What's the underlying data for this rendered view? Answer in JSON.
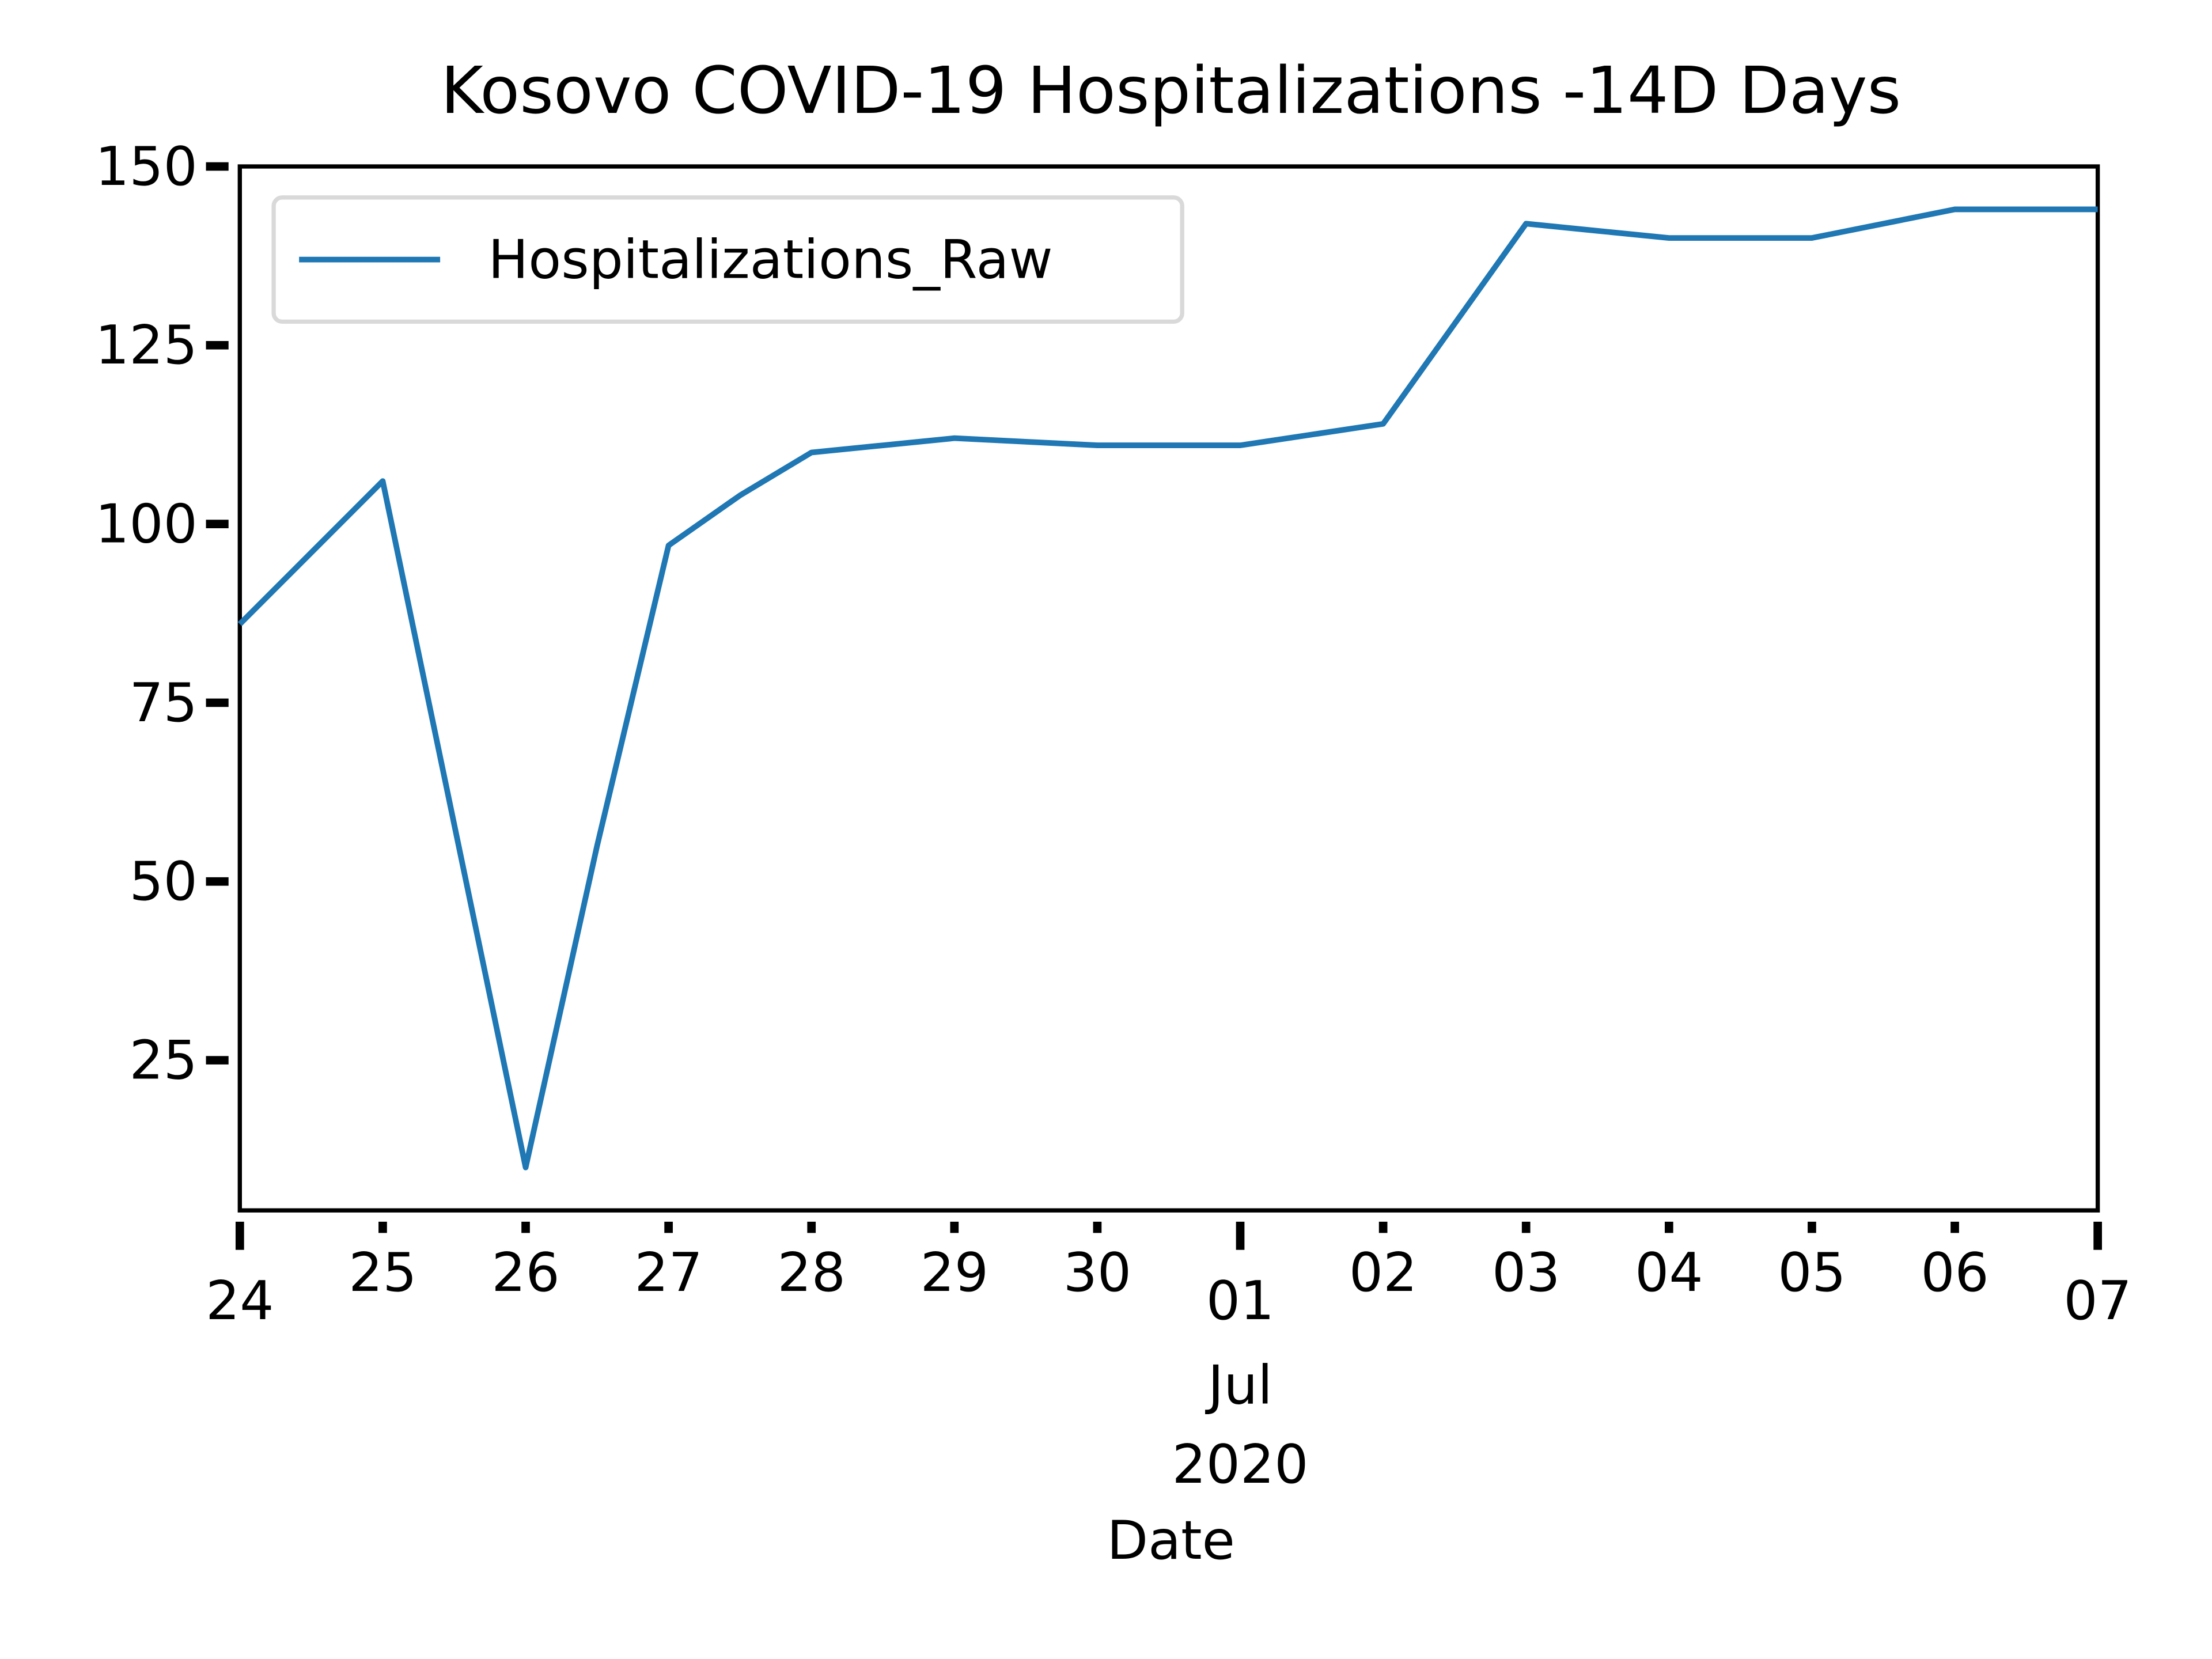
{
  "chart_data": {
    "type": "line",
    "title": "Kosovo COVID-19 Hospitalizations -14D Days",
    "x_label": "Date",
    "x": [
      "2020-06-24T00:00",
      "2020-06-24T12:00",
      "2020-06-25T00:00",
      "2020-06-25T12:00",
      "2020-06-26T00:00",
      "2020-06-26T12:00",
      "2020-06-27T00:00",
      "2020-06-27T12:00",
      "2020-06-28T00:00",
      "2020-06-28T12:00",
      "2020-06-29T00:00",
      "2020-06-29T12:00",
      "2020-06-30T00:00",
      "2020-06-30T12:00",
      "2020-07-01T00:00",
      "2020-07-01T12:00",
      "2020-07-02T00:00",
      "2020-07-02T12:00",
      "2020-07-03T00:00",
      "2020-07-03T12:00",
      "2020-07-04T00:00",
      "2020-07-04T12:00",
      "2020-07-05T00:00",
      "2020-07-05T12:00",
      "2020-07-06T00:00",
      "2020-07-06T12:00",
      "2020-07-07T00:00"
    ],
    "series": [
      {
        "name": "Hospitalizations_Raw",
        "color": "#1f77b4",
        "values": [
          86,
          96,
          106,
          58,
          10,
          55,
          97,
          104,
          110,
          111,
          112,
          111.5,
          111,
          111,
          111,
          112.5,
          114,
          128,
          142,
          141,
          140,
          140,
          140,
          142,
          144,
          144,
          144
        ]
      }
    ],
    "xlim": [
      "2020-06-24T00:00",
      "2020-07-07T00:00"
    ],
    "xticks": [
      {
        "value": "2020-06-24T00:00",
        "label": "24"
      },
      {
        "value": "2020-06-25T00:00",
        "label": "25"
      },
      {
        "value": "2020-06-26T00:00",
        "label": "26"
      },
      {
        "value": "2020-06-27T00:00",
        "label": "27"
      },
      {
        "value": "2020-06-28T00:00",
        "label": "28"
      },
      {
        "value": "2020-06-29T00:00",
        "label": "29"
      },
      {
        "value": "2020-06-30T00:00",
        "label": "30"
      },
      {
        "value": "2020-07-01T00:00",
        "label": "01"
      },
      {
        "value": "2020-07-02T00:00",
        "label": "02"
      },
      {
        "value": "2020-07-03T00:00",
        "label": "03"
      },
      {
        "value": "2020-07-04T00:00",
        "label": "04"
      },
      {
        "value": "2020-07-05T00:00",
        "label": "05"
      },
      {
        "value": "2020-07-06T00:00",
        "label": "06"
      },
      {
        "value": "2020-07-07T00:00",
        "label": "07"
      }
    ],
    "xtick_sublabels": [
      "Jul",
      "2020"
    ],
    "ylim": [
      4,
      150
    ],
    "yticks": [
      25,
      50,
      75,
      100,
      125,
      150
    ],
    "legend": "upper left",
    "grid": false
  }
}
